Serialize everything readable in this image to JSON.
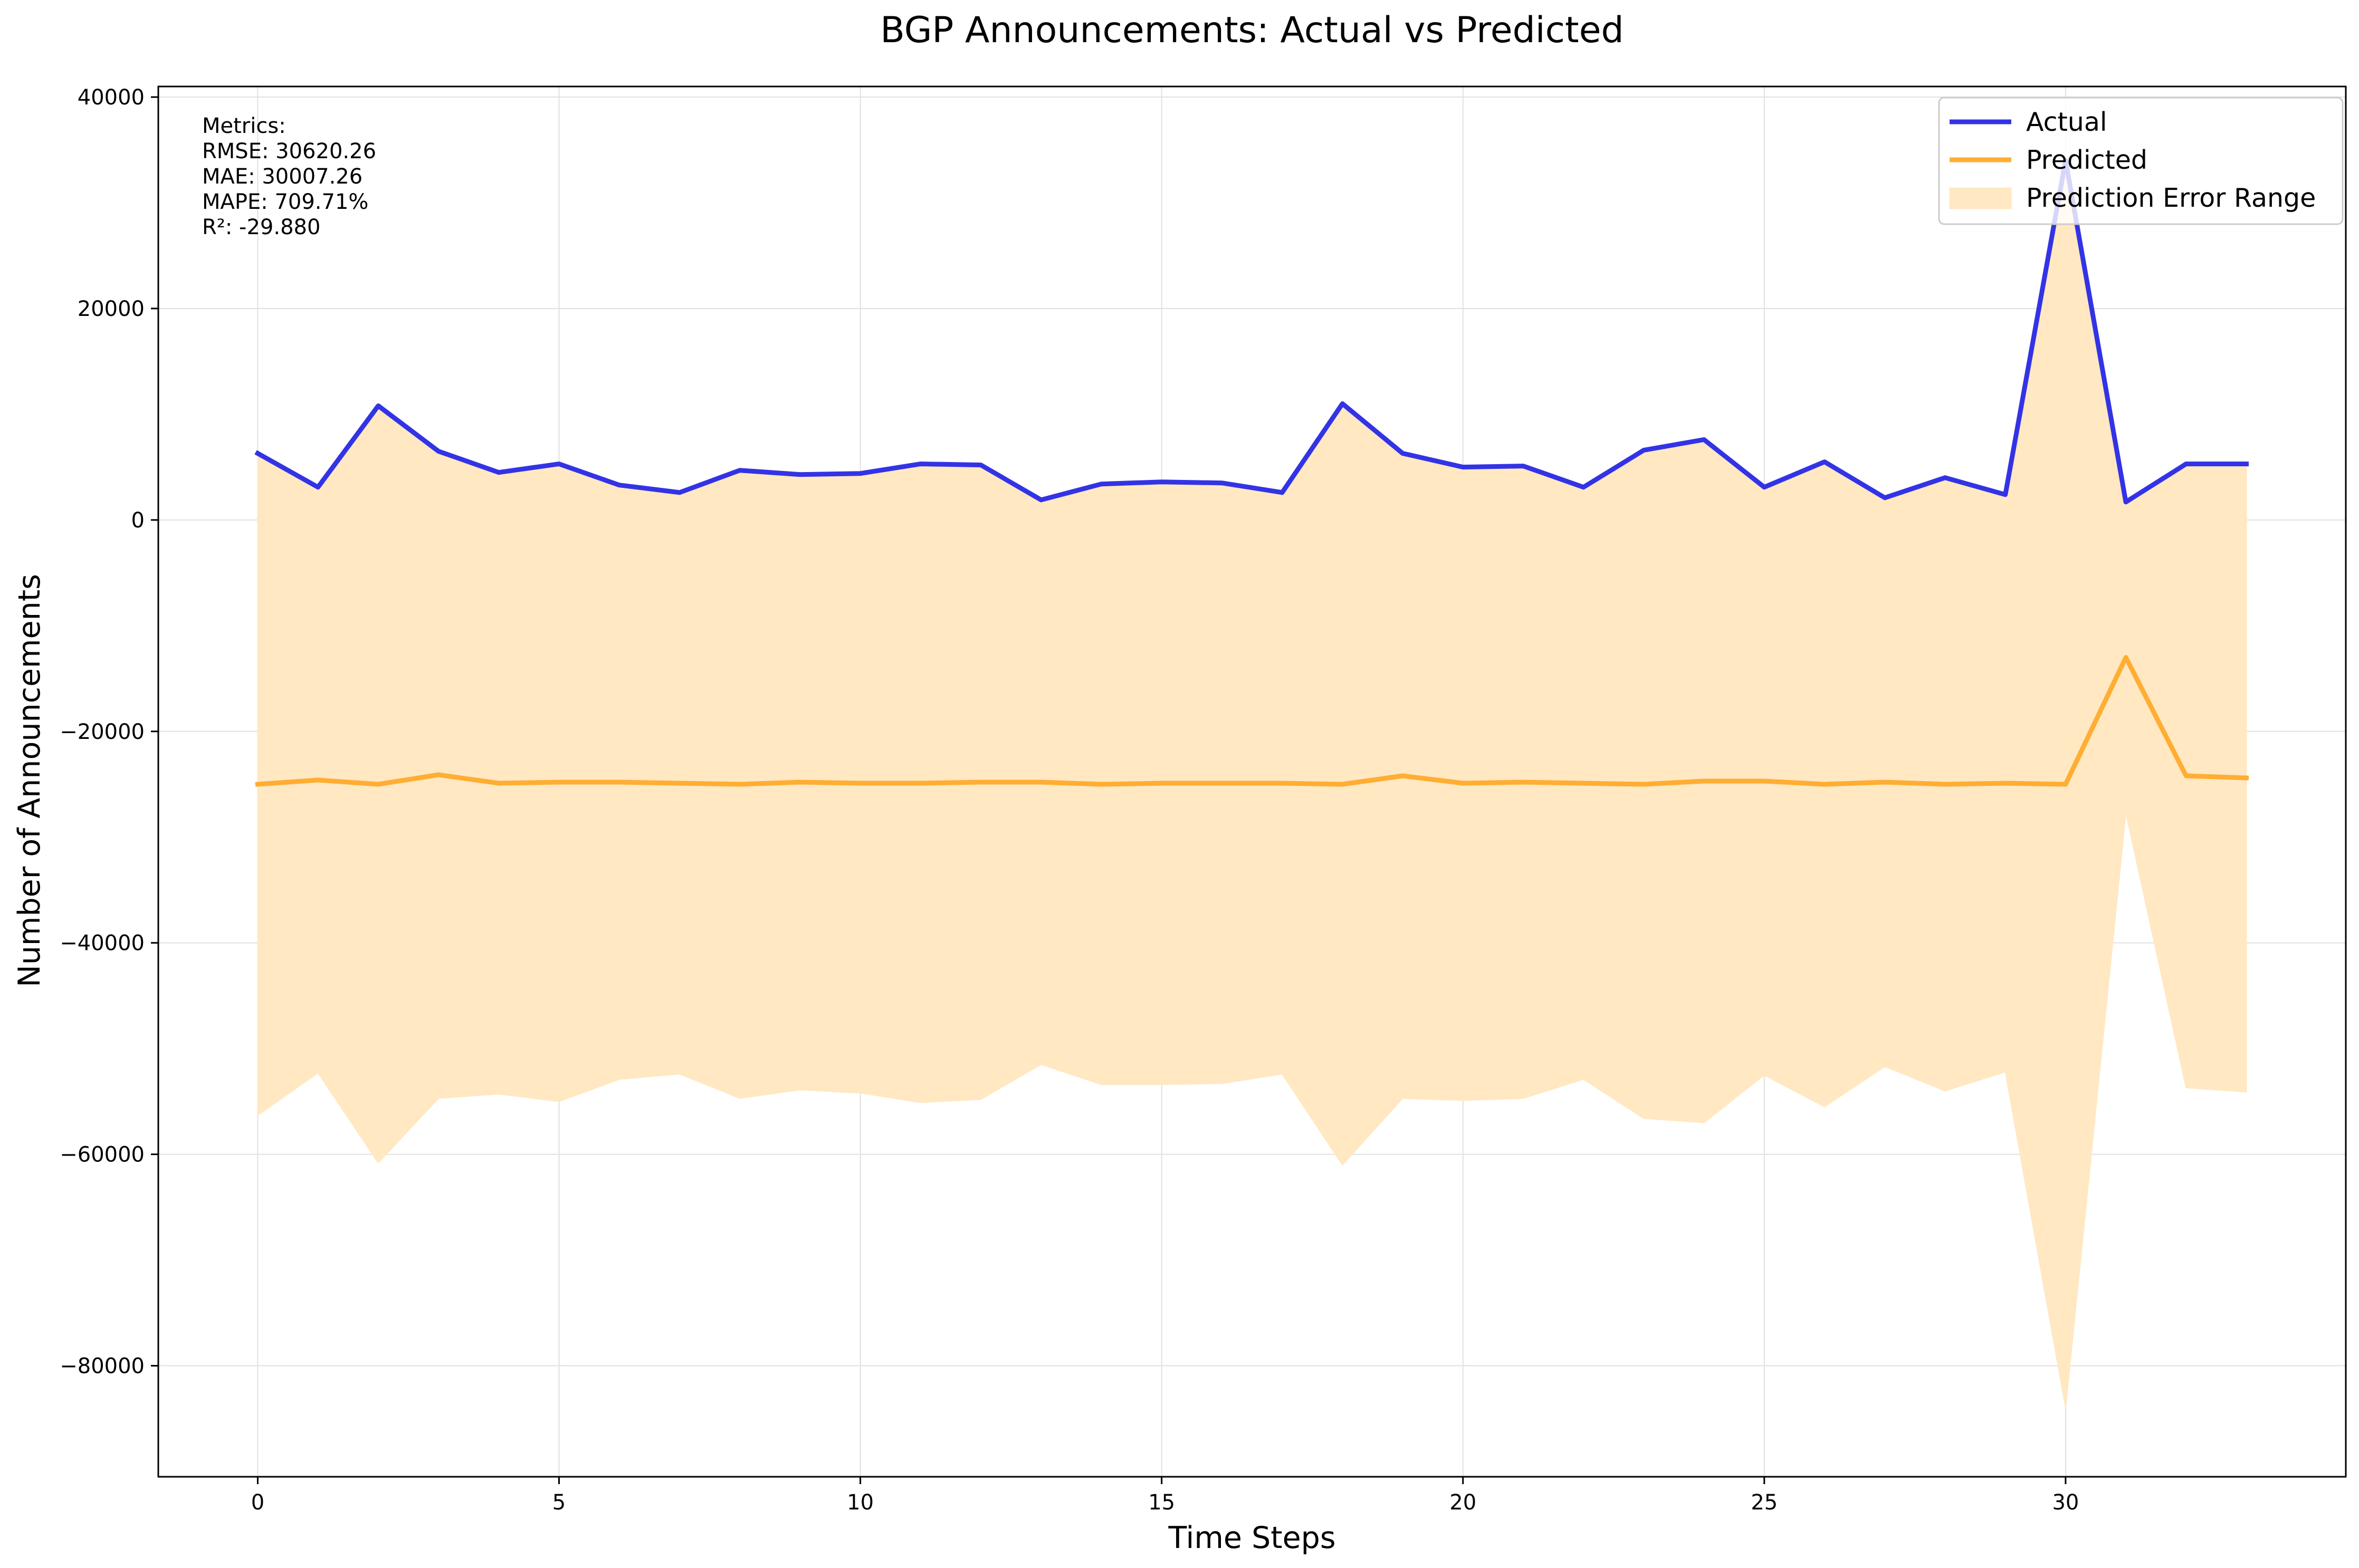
{
  "colors": {
    "actual": "#3333e6",
    "predicted": "#ffad33",
    "error_fill": "#ffe8c2",
    "grid": "#e0e0e0"
  },
  "chart_data": {
    "type": "line",
    "title": "BGP Announcements: Actual vs Predicted",
    "xlabel": "Time Steps",
    "ylabel": "Number of Announcements",
    "xlim": [
      -1.65,
      34.65
    ],
    "ylim": [
      -90500,
      41000
    ],
    "xticks": [
      0,
      5,
      10,
      15,
      20,
      25,
      30
    ],
    "yticks": [
      -80000,
      -60000,
      -40000,
      -20000,
      0,
      20000,
      40000
    ],
    "ytick_labels": [
      "−80000",
      "−60000",
      "−40000",
      "−20000",
      "0",
      "20000",
      "40000"
    ],
    "grid": true,
    "legend_position": "top-right",
    "x": [
      0,
      1,
      2,
      3,
      4,
      5,
      6,
      7,
      8,
      9,
      10,
      11,
      12,
      13,
      14,
      15,
      16,
      17,
      18,
      19,
      20,
      21,
      22,
      23,
      24,
      25,
      26,
      27,
      28,
      29,
      30,
      31,
      32,
      33
    ],
    "series": [
      {
        "name": "Actual",
        "values": [
          6300,
          3100,
          10800,
          6500,
          4500,
          5300,
          3300,
          2600,
          4700,
          4300,
          4400,
          5300,
          5200,
          1900,
          3400,
          3600,
          3500,
          2600,
          11000,
          6300,
          5000,
          5100,
          3100,
          6600,
          7600,
          3100,
          5500,
          2100,
          4000,
          2400,
          34000,
          1700,
          5300,
          5300
        ]
      },
      {
        "name": "Predicted",
        "values": [
          -25000,
          -24600,
          -25000,
          -24100,
          -24900,
          -24800,
          -24800,
          -24900,
          -25000,
          -24800,
          -24900,
          -24900,
          -24800,
          -24800,
          -25000,
          -24900,
          -24900,
          -24900,
          -25000,
          -24200,
          -24900,
          -24800,
          -24900,
          -25000,
          -24700,
          -24700,
          -25000,
          -24800,
          -25000,
          -24900,
          -25000,
          -13000,
          -24200,
          -24400
        ]
      },
      {
        "name": "Prediction Error Range",
        "values": [
          -56300,
          -52300,
          -60800,
          -54700,
          -54300,
          -55000,
          -52900,
          -52400,
          -54700,
          -53900,
          -54200,
          -55100,
          -54800,
          -51500,
          -53400,
          -53400,
          -53300,
          -52400,
          -61000,
          -54700,
          -54900,
          -54700,
          -52900,
          -56600,
          -57000,
          -52500,
          -55500,
          -51700,
          -54000,
          -52200,
          -84000,
          -27700,
          -53700,
          -54100
        ]
      }
    ],
    "metrics": {
      "header": "Metrics:",
      "rmse": "RMSE: 30620.26",
      "mae": "MAE: 30007.26",
      "mape": "MAPE: 709.71%",
      "r2": "R²: -29.880"
    }
  }
}
